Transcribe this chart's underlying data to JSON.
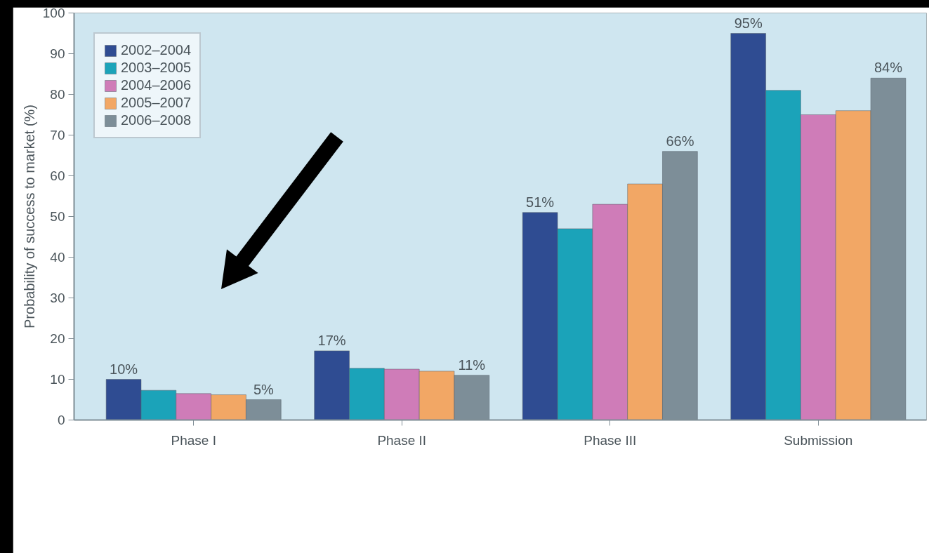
{
  "chart_data": {
    "type": "bar",
    "ylabel": "Probability of success to market (%)",
    "categories": [
      "Phase I",
      "Phase II",
      "Phase III",
      "Submission"
    ],
    "series": [
      {
        "name": "2002–2004",
        "color": "#2f4c92",
        "values": [
          10,
          17,
          51,
          95
        ],
        "value_labels": [
          "10%",
          "17%",
          "51%",
          "95%"
        ]
      },
      {
        "name": "2003–2005",
        "color": "#1ba3b9",
        "values": [
          7.3,
          12.7,
          47,
          81
        ]
      },
      {
        "name": "2004–2006",
        "color": "#cf7cb8",
        "values": [
          6.5,
          12.5,
          53,
          75
        ]
      },
      {
        "name": "2005–2007",
        "color": "#f2a765",
        "values": [
          6.2,
          12,
          58,
          76
        ]
      },
      {
        "name": "2006–2008",
        "color": "#7d8e98",
        "values": [
          5,
          11,
          66,
          84
        ],
        "value_labels": [
          "5%",
          "11%",
          "66%",
          "84%"
        ]
      }
    ],
    "ylim": [
      0,
      100
    ],
    "yticks": [
      0,
      10,
      20,
      30,
      40,
      50,
      60,
      70,
      80,
      90,
      100
    ],
    "grid": false,
    "legend": "top left"
  }
}
